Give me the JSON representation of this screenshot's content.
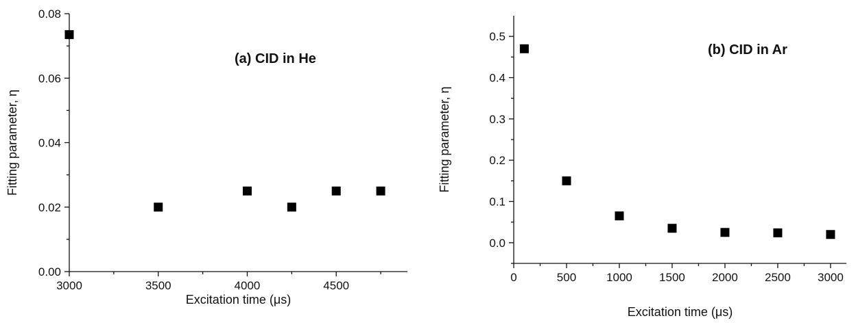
{
  "chart_data": [
    {
      "type": "scatter",
      "title": "(a) CID in He",
      "xlabel": "Excitation time (μs)",
      "ylabel": "Fitting parameter, η",
      "xlim": [
        3000,
        4900
      ],
      "ylim": [
        0,
        0.08
      ],
      "xticks": [
        3000,
        3500,
        4000,
        4500
      ],
      "xtick_labels": [
        "3000",
        "3500",
        "4000",
        "4500"
      ],
      "yticks": [
        0,
        0.02,
        0.04,
        0.06,
        0.08
      ],
      "ytick_labels": [
        "0.00",
        "0.02",
        "0.04",
        "0.06",
        "0.08"
      ],
      "grid": false,
      "marker": "filled-square",
      "color": "#000000",
      "series": [
        {
          "x": [
            3000,
            3500,
            4000,
            4250,
            4500,
            4750
          ],
          "y": [
            0.0735,
            0.02,
            0.025,
            0.02,
            0.025,
            0.025
          ]
        }
      ]
    },
    {
      "type": "scatter",
      "title": "(b) CID in Ar",
      "xlabel": "Excitation time (μs)",
      "ylabel": "Fitting parameter, η",
      "xlim": [
        0,
        3150
      ],
      "ylim": [
        -0.05,
        0.55
      ],
      "xticks": [
        0,
        500,
        1000,
        1500,
        2000,
        2500,
        3000
      ],
      "xtick_labels": [
        "0",
        "500",
        "1000",
        "1500",
        "2000",
        "2500",
        "3000"
      ],
      "yticks": [
        0,
        0.1,
        0.2,
        0.3,
        0.4,
        0.5
      ],
      "ytick_labels": [
        "0.0",
        "0.1",
        "0.2",
        "0.3",
        "0.4",
        "0.5"
      ],
      "grid": false,
      "marker": "filled-square",
      "color": "#000000",
      "series": [
        {
          "x": [
            100,
            500,
            1000,
            1500,
            2000,
            2500,
            3000
          ],
          "y": [
            0.47,
            0.15,
            0.065,
            0.035,
            0.025,
            0.024,
            0.02
          ]
        }
      ]
    }
  ]
}
